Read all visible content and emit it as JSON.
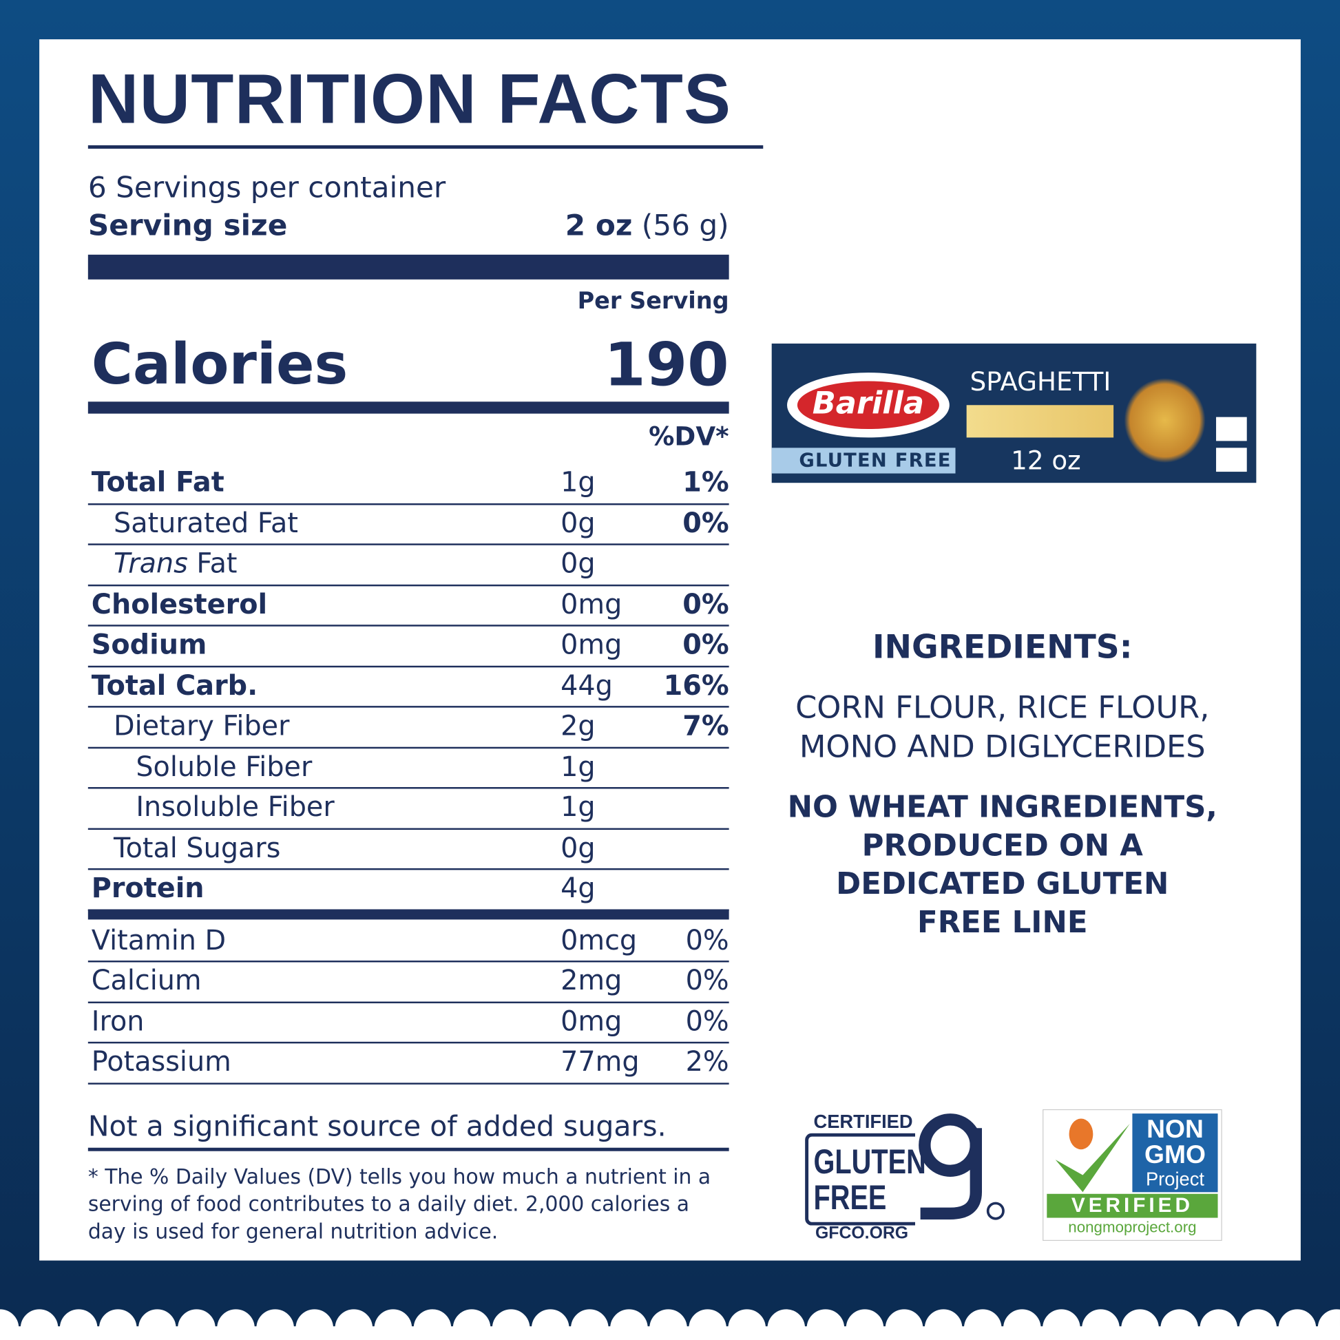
{
  "header": {
    "title": "NUTRITION FACTS"
  },
  "servings": {
    "per_container": "6 Servings per container",
    "size_label": "Serving size",
    "size_bold": "2 oz",
    "size_rest": "(56 g)"
  },
  "per_serving": "Per Serving",
  "calories": {
    "label": "Calories",
    "value": "190"
  },
  "dv_header": "%DV*",
  "nutrients": [
    {
      "label": "Total Fat",
      "amount": "1g",
      "dv": "1%",
      "level": 0,
      "bold": true
    },
    {
      "label": "Saturated Fat",
      "amount": "0g",
      "dv": "0%",
      "level": 1,
      "bold": false
    },
    {
      "italic": "Trans",
      "label": "Fat",
      "amount": "0g",
      "level": 1,
      "bold": false
    },
    {
      "label": "Cholesterol",
      "amount": "0mg",
      "dv": "0%",
      "level": 0,
      "bold": true
    },
    {
      "label": "Sodium",
      "amount": "0mg",
      "dv": "0%",
      "level": 0,
      "bold": true
    },
    {
      "label": "Total Carb.",
      "amount": "44g",
      "dv": "16%",
      "level": 0,
      "bold": true
    },
    {
      "label": "Dietary Fiber",
      "amount": "2g",
      "dv": "7%",
      "level": 1,
      "bold": false
    },
    {
      "label": "Soluble Fiber",
      "amount": "1g",
      "level": 2,
      "bold": false
    },
    {
      "label": "Insoluble Fiber",
      "amount": "1g",
      "level": 2,
      "bold": false
    },
    {
      "label": "Total Sugars",
      "amount": "0g",
      "level": 1,
      "bold": false
    },
    {
      "label": "Protein",
      "amount": "4g",
      "level": 0,
      "bold": true
    }
  ],
  "vitamins": [
    {
      "label": "Vitamin D",
      "amount": "0mcg",
      "dv": "0%"
    },
    {
      "label": "Calcium",
      "amount": "2mg",
      "dv": "0%"
    },
    {
      "label": "Iron",
      "amount": "0mg",
      "dv": "0%"
    },
    {
      "label": "Potassium",
      "amount": "77mg",
      "dv": "2%"
    }
  ],
  "added_sugars_note": "Not a significant source of added sugars.",
  "footnote": "* The % Daily Values (DV) tells you how much a nutrient in a serving of food contributes to a daily diet. 2,000 calories a day is used for general nutrition advice.",
  "product": {
    "brand": "Barilla",
    "name": "SPAGHETTI",
    "badge": "GLUTEN FREE",
    "size": "12 oz"
  },
  "ingredients": {
    "title": "INGREDIENTS:",
    "lines": [
      "CORN FLOUR, RICE FLOUR,",
      "MONO AND DIGLYCERIDES"
    ],
    "note_lines": [
      "NO WHEAT INGREDIENTS,",
      "PRODUCED ON A",
      "DEDICATED GLUTEN",
      "FREE LINE"
    ]
  },
  "logos": {
    "gfco": {
      "top": "CERTIFIED",
      "line1": "GLUTEN",
      "line2": "FREE",
      "url": "GFCO.ORG"
    },
    "nongmo": {
      "line1": "NON",
      "line2": "GMO",
      "line3": "Project",
      "verified": "VERIFIED",
      "url": "nongmoproject.org"
    }
  }
}
